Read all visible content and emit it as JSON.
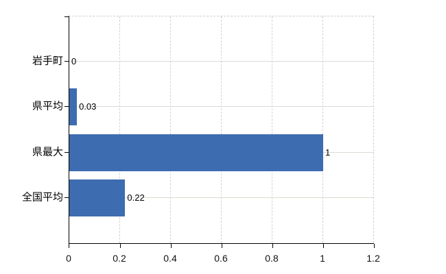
{
  "chart_data": {
    "type": "bar",
    "orientation": "horizontal",
    "title": "",
    "xlabel": "",
    "ylabel": "",
    "categories": [
      "岩手町",
      "県平均",
      "県最大",
      "全国平均"
    ],
    "values": [
      0,
      0.03,
      1,
      0.22
    ],
    "value_labels": [
      "0",
      "0.03",
      "1",
      "0.22"
    ],
    "x_ticks": [
      0,
      0.2,
      0.4,
      0.6,
      0.8,
      1,
      1.2
    ],
    "x_tick_labels": [
      "0",
      "0.2",
      "0.4",
      "0.6",
      "0.8",
      "1",
      "1.2"
    ],
    "xlim": [
      0,
      1.2
    ],
    "grid": {
      "vertical": "dashed",
      "horizontal": "solid",
      "legend": "none"
    },
    "colors": {
      "bar": "#3e6cb0",
      "vertical_grid": "#d2cfd8",
      "horizontal_grid": "#d8dcd2",
      "axis": "#000000",
      "plot_top_border": "#cccccc",
      "text": "#000000",
      "background": "#ffffff"
    }
  }
}
